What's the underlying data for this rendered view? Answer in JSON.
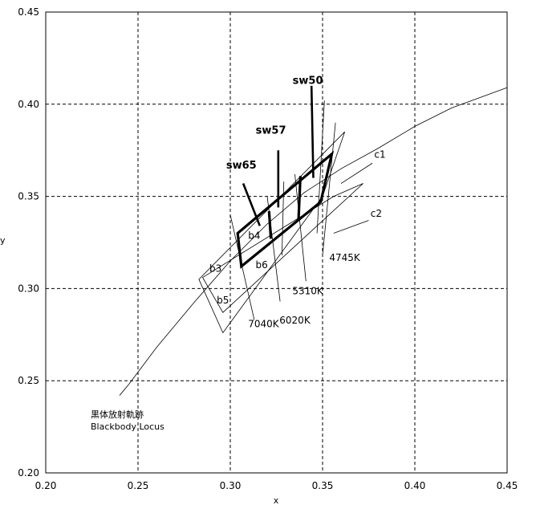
{
  "chart_data": {
    "type": "scatter",
    "title": "",
    "xlabel": "x",
    "ylabel": "y",
    "xlim": [
      0.2,
      0.45
    ],
    "ylim": [
      0.2,
      0.45
    ],
    "xticks": [
      "0.20",
      "0.25",
      "0.30",
      "0.35",
      "0.40",
      "0.45"
    ],
    "yticks": [
      "0.20",
      "0.25",
      "0.30",
      "0.35",
      "0.40",
      "0.45"
    ],
    "grid": true,
    "blackbody_locus": {
      "label_ja": "黒体放射軌跡",
      "label_en": "Blackbody Locus",
      "points": [
        [
          0.245,
          0.248
        ],
        [
          0.26,
          0.268
        ],
        [
          0.28,
          0.292
        ],
        [
          0.3,
          0.315
        ],
        [
          0.32,
          0.335
        ],
        [
          0.34,
          0.352
        ],
        [
          0.36,
          0.365
        ],
        [
          0.38,
          0.376
        ],
        [
          0.4,
          0.388
        ],
        [
          0.42,
          0.398
        ],
        [
          0.45,
          0.409
        ]
      ]
    },
    "outer_bands": [
      {
        "name": "c1",
        "label_pos": [
          0.378,
          0.371
        ],
        "polygon": [
          [
            0.283,
            0.305
          ],
          [
            0.362,
            0.385
          ],
          [
            0.35,
            0.35
          ],
          [
            0.296,
            0.276
          ]
        ]
      },
      {
        "name": "c2",
        "label_pos": [
          0.376,
          0.339
        ],
        "polygon": [
          [
            0.285,
            0.306
          ],
          [
            0.356,
            0.35
          ],
          [
            0.372,
            0.357
          ],
          [
            0.296,
            0.287
          ]
        ]
      }
    ],
    "bins": [
      {
        "name": "b3",
        "label_pos": [
          0.292,
          0.309
        ]
      },
      {
        "name": "b4",
        "label_pos": [
          0.313,
          0.327
        ]
      },
      {
        "name": "b5",
        "label_pos": [
          0.296,
          0.292
        ]
      },
      {
        "name": "b6",
        "label_pos": [
          0.317,
          0.311
        ]
      }
    ],
    "thick_bins": {
      "outer": [
        [
          0.304,
          0.33
        ],
        [
          0.355,
          0.373
        ],
        [
          0.349,
          0.347
        ],
        [
          0.306,
          0.312
        ]
      ],
      "dividers": [
        [
          [
            0.321,
            0.342
          ],
          [
            0.322,
            0.327
          ]
        ],
        [
          [
            0.338,
            0.361
          ],
          [
            0.337,
            0.338
          ]
        ]
      ]
    },
    "cct_lines": [
      {
        "label": "7040K",
        "segment": [
          [
            0.3,
            0.34
          ],
          [
            0.313,
            0.283
          ]
        ],
        "label_pos": [
          0.318,
          0.279
        ]
      },
      {
        "label": "6020K",
        "segment": [
          [
            0.32,
            0.35
          ],
          [
            0.327,
            0.293
          ]
        ],
        "label_pos": [
          0.335,
          0.281
        ]
      },
      {
        "label": "5310K",
        "segment": [
          [
            0.335,
            0.362
          ],
          [
            0.341,
            0.304
          ]
        ],
        "label_pos": [
          0.342,
          0.297
        ]
      },
      {
        "label": "4745K",
        "segment": [
          [
            0.357,
            0.39
          ],
          [
            0.35,
            0.318
          ]
        ],
        "label_pos": [
          0.362,
          0.315
        ]
      },
      {
        "label": "",
        "segment": [
          [
            0.351,
            0.402
          ],
          [
            0.347,
            0.33
          ]
        ],
        "label_pos": null
      },
      {
        "label": "",
        "segment": [
          [
            0.329,
            0.358
          ],
          [
            0.328,
            0.318
          ]
        ],
        "label_pos": null
      }
    ],
    "sw_lines": [
      {
        "label": "sw65",
        "segment": [
          [
            0.307,
            0.357
          ],
          [
            0.316,
            0.334
          ]
        ],
        "label_pos": [
          0.306,
          0.365
        ]
      },
      {
        "label": "sw57",
        "segment": [
          [
            0.326,
            0.375
          ],
          [
            0.326,
            0.344
          ]
        ],
        "label_pos": [
          0.322,
          0.384
        ]
      },
      {
        "label": "sw50",
        "segment": [
          [
            0.344,
            0.41
          ],
          [
            0.345,
            0.36
          ]
        ],
        "label_pos": [
          0.342,
          0.411
        ]
      }
    ]
  }
}
